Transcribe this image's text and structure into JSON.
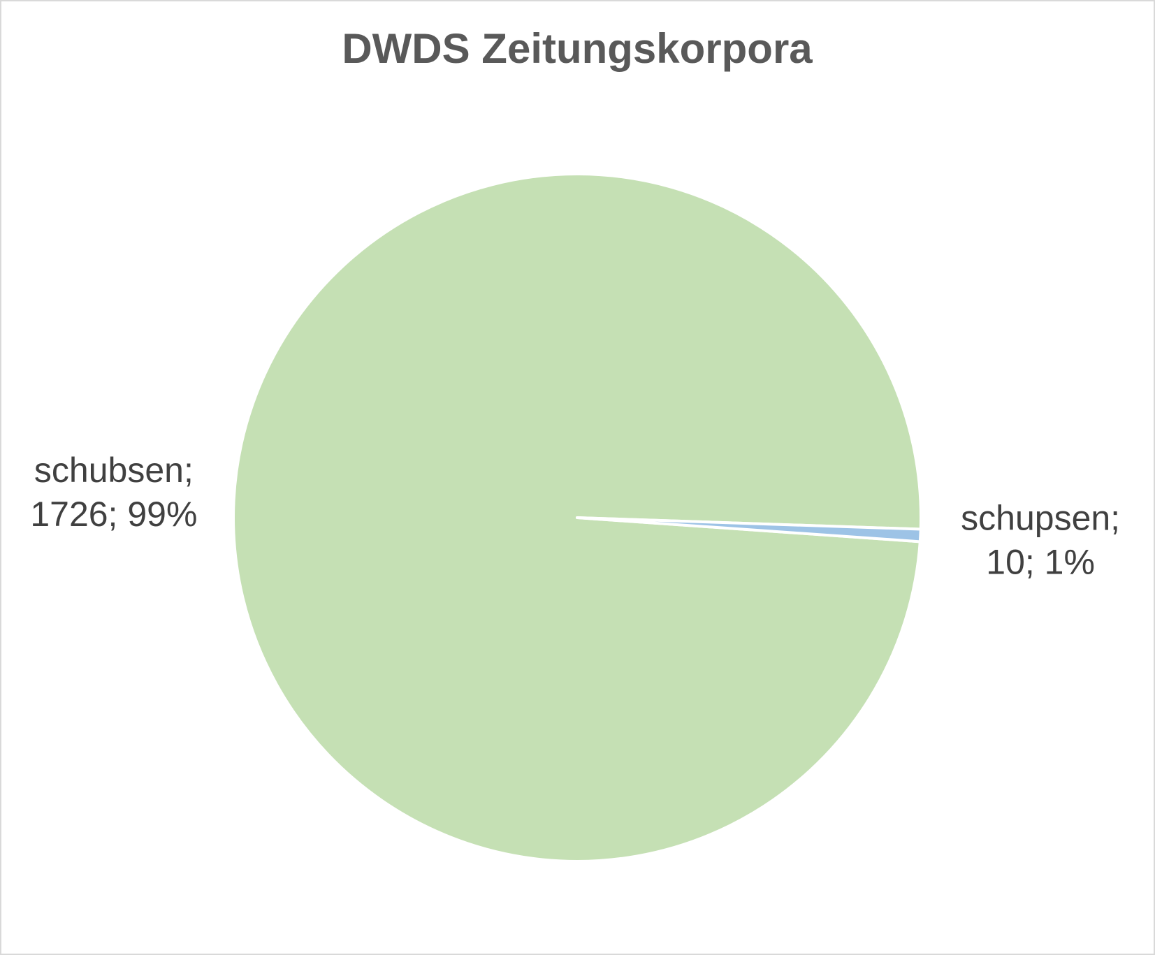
{
  "chart_data": {
    "type": "pie",
    "title": "DWDS Zeitungskorpora",
    "categories": [
      "schubsen;",
      "schupsen;"
    ],
    "values": [
      1726,
      10
    ],
    "value_labels": [
      "1726; 99%",
      "10; 1%"
    ],
    "colors": [
      "#c5e0b4",
      "#9dc3e6"
    ]
  }
}
